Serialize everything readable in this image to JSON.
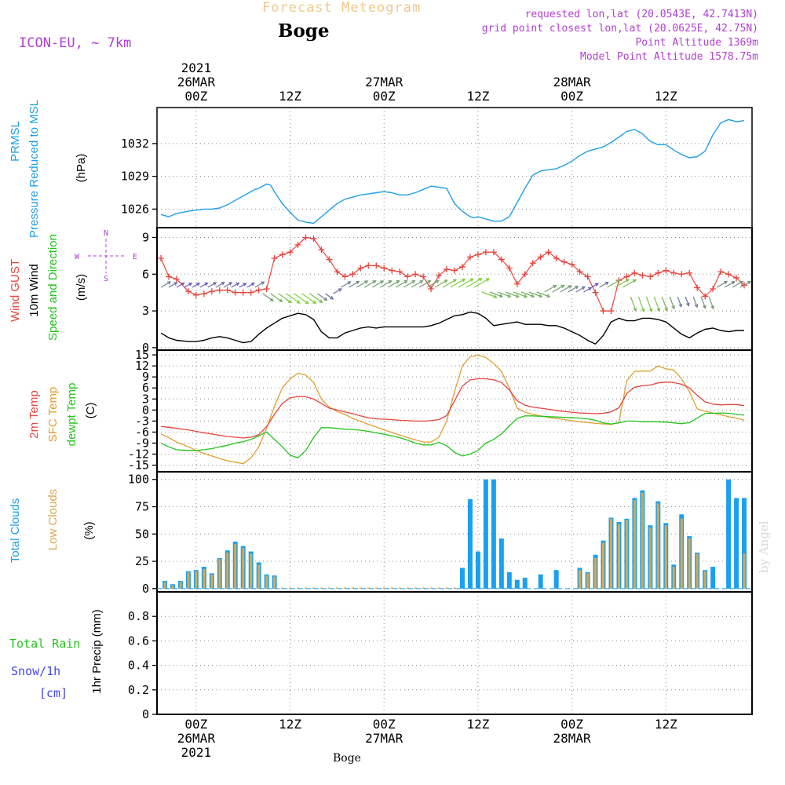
{
  "header": {
    "subtitle": "Forecast Meteogram",
    "location": "Boge",
    "model": "ICON-EU, ~ 7km",
    "requested": "requested lon,lat (20.0543E, 42.7413N)",
    "gridpoint": "grid point closest lon,lat (20.0625E, 42.75N)",
    "point_alt": "Point Altitude 1369m",
    "model_alt": "Model Point Altitude 1578.75m",
    "watermark": "by Angel",
    "footer": "Boge"
  },
  "time_axis": {
    "top_labels": [
      [
        "2021",
        "26MAR",
        "00Z"
      ],
      [
        "12Z"
      ],
      [
        "27MAR",
        "00Z"
      ],
      [
        "12Z"
      ],
      [
        "28MAR",
        "00Z"
      ],
      [
        "12Z"
      ]
    ],
    "bottom_labels": [
      [
        "00Z",
        "26MAR",
        "2021"
      ],
      [
        "12Z"
      ],
      [
        "00Z",
        "27MAR"
      ],
      [
        "12Z"
      ],
      [
        "00Z",
        "28MAR"
      ],
      [
        "12Z"
      ]
    ],
    "tick_hours": [
      0,
      12,
      24,
      36,
      48,
      60
    ],
    "xlim_hours": [
      -5,
      71
    ]
  },
  "colors": {
    "pressure": "#1f9fe6",
    "gust": "#e8443c",
    "wind": "#000000",
    "arrows_low": "#6a3cd8",
    "arrows_high": "#7ad038",
    "temp": "#e8443c",
    "sfc": "#e0a030",
    "dewpt": "#22c41c",
    "total_clouds": "#1aa0f0",
    "low_clouds": "#d8a850",
    "rain": "#22c41c",
    "snow": "#4545e8",
    "vectors": "#b040d0",
    "subtitle": "#f2c98a"
  },
  "chart_data": [
    {
      "type": "line",
      "panel": "pressure",
      "labels": [
        "PRMSL",
        "Pressure Reduced to MSL",
        "(hPa)"
      ],
      "ylim": [
        1024.3,
        1035.3
      ],
      "yticks": [
        1026,
        1029,
        1032
      ],
      "x": [
        -4.5,
        -3.5,
        -2.5,
        -1,
        0,
        1,
        2,
        3,
        4,
        5,
        6,
        7,
        7.5,
        8,
        8.5,
        9,
        9.5,
        10,
        11,
        12,
        13,
        14,
        15,
        16,
        17,
        18,
        19,
        20,
        21,
        22,
        23,
        24,
        25,
        26,
        27,
        28,
        29,
        30,
        31,
        32,
        33,
        34,
        35,
        35.5,
        36,
        37,
        38,
        39,
        40,
        41,
        42,
        43,
        44,
        45,
        46,
        47,
        48,
        49,
        50,
        51,
        52,
        53,
        54,
        55,
        56,
        57,
        58,
        59,
        60,
        61,
        62,
        63,
        64,
        65,
        66,
        67,
        68,
        69,
        70
      ],
      "series": [
        {
          "name": "PRMSL",
          "values": [
            1025.5,
            1025.3,
            1025.6,
            1025.8,
            1025.9,
            1026.0,
            1026.0,
            1026.1,
            1026.4,
            1026.8,
            1027.2,
            1027.6,
            1027.8,
            1027.9,
            1028.1,
            1028.3,
            1028.2,
            1027.6,
            1026.5,
            1025.7,
            1025.0,
            1024.8,
            1024.7,
            1025.3,
            1025.9,
            1026.5,
            1026.9,
            1027.1,
            1027.3,
            1027.4,
            1027.5,
            1027.6,
            1027.5,
            1027.3,
            1027.3,
            1027.5,
            1027.8,
            1028.1,
            1028.0,
            1027.9,
            1026.5,
            1025.8,
            1025.3,
            1025.2,
            1025.3,
            1025.1,
            1024.9,
            1024.9,
            1025.3,
            1026.6,
            1027.9,
            1029.1,
            1029.5,
            1029.6,
            1029.7,
            1030.0,
            1030.4,
            1030.9,
            1031.3,
            1031.5,
            1031.7,
            1032.1,
            1032.6,
            1033.1,
            1033.3,
            1032.9,
            1032.2,
            1031.9,
            1031.9,
            1031.4,
            1031.0,
            1030.7,
            1030.8,
            1031.3,
            1032.8,
            1033.9,
            1034.2,
            1034.0,
            1034.1
          ]
        }
      ]
    },
    {
      "type": "line",
      "panel": "wind",
      "labels": [
        "Wind GUST",
        "10m Wind",
        "Speed and Direction",
        "(m/s)"
      ],
      "compass": {
        "n": "N",
        "s": "S",
        "w": "W",
        "e": "E"
      },
      "ylim": [
        -0.2,
        9.8
      ],
      "yticks": [
        0,
        3,
        6,
        9
      ],
      "x": [
        -4.5,
        -3.5,
        -2.5,
        -1,
        0,
        1,
        2,
        3,
        4,
        5,
        6,
        7,
        8,
        9,
        10,
        11,
        12,
        13,
        14,
        15,
        16,
        17,
        18,
        19,
        20,
        21,
        22,
        23,
        24,
        25,
        26,
        27,
        28,
        29,
        30,
        31,
        32,
        33,
        34,
        35,
        36,
        37,
        38,
        39,
        40,
        41,
        42,
        43,
        44,
        45,
        46,
        47,
        48,
        49,
        50,
        51,
        52,
        53,
        54,
        55,
        56,
        57,
        58,
        59,
        60,
        61,
        62,
        63,
        64,
        65,
        66,
        67,
        68,
        69,
        70
      ],
      "series": [
        {
          "name": "Wind GUST",
          "values": [
            7.3,
            5.8,
            5.6,
            4.6,
            4.3,
            4.4,
            4.6,
            4.7,
            4.7,
            4.5,
            4.5,
            4.5,
            4.7,
            4.8,
            7.3,
            7.6,
            7.8,
            8.4,
            9.0,
            8.9,
            8.0,
            7.2,
            6.2,
            5.8,
            6.0,
            6.5,
            6.7,
            6.7,
            6.5,
            6.3,
            6.2,
            5.8,
            6.0,
            5.8,
            4.8,
            5.9,
            6.4,
            6.3,
            6.6,
            7.4,
            7.6,
            7.8,
            7.8,
            7.2,
            6.5,
            5.2,
            6.0,
            6.9,
            7.4,
            7.8,
            7.3,
            7.0,
            6.8,
            6.2,
            5.8,
            4.5,
            3.0,
            3.0,
            5.5,
            5.8,
            6.1,
            5.9,
            5.8,
            6.1,
            6.3,
            6.1,
            6.0,
            6.1,
            4.9,
            4.2,
            4.8,
            6.2,
            6.0,
            5.7,
            5.1
          ]
        },
        {
          "name": "10m Wind",
          "values": [
            1.2,
            0.8,
            0.6,
            0.5,
            0.5,
            0.6,
            0.8,
            0.9,
            0.8,
            0.6,
            0.4,
            0.5,
            1.1,
            1.6,
            2.0,
            2.4,
            2.6,
            2.8,
            2.7,
            2.3,
            1.3,
            0.8,
            0.8,
            1.2,
            1.4,
            1.6,
            1.7,
            1.6,
            1.7,
            1.7,
            1.7,
            1.7,
            1.7,
            1.7,
            1.8,
            2.0,
            2.3,
            2.6,
            2.7,
            2.9,
            2.8,
            2.4,
            1.8,
            1.9,
            2.0,
            2.1,
            1.9,
            1.9,
            1.9,
            1.8,
            1.8,
            1.6,
            1.3,
            1.0,
            0.6,
            0.3,
            1.0,
            2.1,
            2.4,
            2.2,
            2.2,
            2.4,
            2.4,
            2.3,
            2.1,
            1.6,
            1.1,
            0.8,
            1.2,
            1.5,
            1.6,
            1.4,
            1.3,
            1.4,
            1.4
          ]
        }
      ]
    },
    {
      "type": "line",
      "panel": "temperature",
      "labels": [
        "2m Temp",
        "SFC Temp",
        "dewpt Temp",
        "(C)"
      ],
      "ylim": [
        -16.8,
        16.3
      ],
      "yticks": [
        -15,
        -12,
        -9,
        -6,
        -3,
        0,
        3,
        6,
        9,
        12,
        15
      ],
      "x": [
        -4.5,
        -3.5,
        -2.5,
        -1,
        0,
        1,
        2,
        3,
        4,
        5,
        6,
        7,
        8,
        9,
        10,
        11,
        12,
        13,
        14,
        15,
        16,
        17,
        18,
        19,
        20,
        21,
        22,
        23,
        24,
        25,
        26,
        27,
        28,
        29,
        30,
        31,
        32,
        33,
        34,
        35,
        36,
        37,
        38,
        39,
        40,
        41,
        42,
        43,
        44,
        45,
        46,
        47,
        48,
        49,
        50,
        51,
        52,
        53,
        54,
        55,
        56,
        57,
        58,
        59,
        60,
        61,
        62,
        63,
        64,
        65,
        66,
        67,
        68,
        69,
        70
      ],
      "series": [
        {
          "name": "2m Temp",
          "values": [
            -4.5,
            -4.7,
            -5.0,
            -5.4,
            -5.8,
            -6.2,
            -6.5,
            -6.9,
            -7.2,
            -7.4,
            -7.6,
            -7.4,
            -6.7,
            -4.5,
            -1.2,
            1.8,
            3.3,
            3.7,
            3.6,
            3.0,
            1.8,
            0.5,
            0.0,
            -0.5,
            -1.0,
            -1.6,
            -2.1,
            -2.4,
            -2.5,
            -2.6,
            -2.8,
            -2.9,
            -3.0,
            -3.0,
            -2.9,
            -2.6,
            -1.5,
            2.5,
            6.5,
            8.2,
            8.5,
            8.5,
            8.2,
            7.5,
            5.5,
            2.5,
            1.3,
            0.8,
            0.5,
            0.2,
            -0.1,
            -0.4,
            -0.6,
            -0.8,
            -0.9,
            -1.0,
            -0.9,
            -0.5,
            0.6,
            4.5,
            6.2,
            6.6,
            6.8,
            7.4,
            7.6,
            7.5,
            7.0,
            6.0,
            4.0,
            2.2,
            1.6,
            1.4,
            1.5,
            1.5,
            1.2
          ]
        },
        {
          "name": "SFC Temp",
          "values": [
            -6.5,
            -7.5,
            -8.7,
            -10.0,
            -11.0,
            -11.8,
            -12.5,
            -13.2,
            -13.8,
            -14.2,
            -14.6,
            -13.0,
            -10.0,
            -5.0,
            1.0,
            6.0,
            8.5,
            10.0,
            9.5,
            7.5,
            3.0,
            0.8,
            -0.4,
            -1.2,
            -2.3,
            -3.1,
            -3.9,
            -4.6,
            -5.4,
            -6.1,
            -6.8,
            -7.5,
            -8.1,
            -8.7,
            -8.7,
            -7.4,
            -3.0,
            5.0,
            12.0,
            14.5,
            14.9,
            14.3,
            12.7,
            10.5,
            6.0,
            0.5,
            -0.6,
            -1.2,
            -1.6,
            -2.0,
            -2.3,
            -2.6,
            -2.9,
            -3.2,
            -3.4,
            -3.6,
            -3.8,
            -3.9,
            -3.4,
            8.0,
            10.5,
            10.6,
            10.6,
            12.0,
            11.2,
            10.9,
            8.5,
            5.0,
            0.3,
            -0.3,
            -0.8,
            -1.3,
            -1.8,
            -2.2,
            -2.8
          ]
        },
        {
          "name": "dewpt Temp",
          "values": [
            -9.0,
            -10.0,
            -10.8,
            -11.0,
            -11.0,
            -10.8,
            -10.5,
            -10.0,
            -9.6,
            -9.0,
            -8.6,
            -8.0,
            -7.0,
            -6.0,
            -8.0,
            -10.0,
            -12.3,
            -13.0,
            -11.0,
            -7.5,
            -4.8,
            -4.8,
            -5.0,
            -5.2,
            -5.3,
            -5.5,
            -5.8,
            -6.2,
            -6.6,
            -7.0,
            -7.5,
            -8.2,
            -9.0,
            -9.5,
            -9.5,
            -8.8,
            -9.7,
            -11.5,
            -12.5,
            -12.0,
            -11.0,
            -9.0,
            -8.0,
            -6.5,
            -4.3,
            -2.3,
            -1.6,
            -1.6,
            -1.7,
            -1.8,
            -1.9,
            -2.0,
            -2.1,
            -2.2,
            -2.4,
            -2.8,
            -3.5,
            -3.8,
            -3.5,
            -3.0,
            -3.0,
            -3.2,
            -3.2,
            -3.2,
            -3.3,
            -3.5,
            -3.7,
            -3.4,
            -2.2,
            -0.9,
            -0.9,
            -0.8,
            -0.9,
            -1.1,
            -1.4
          ]
        }
      ]
    },
    {
      "type": "bar",
      "panel": "clouds",
      "labels": [
        "Total Clouds",
        "Low Clouds",
        "(%)"
      ],
      "ylim": [
        -3,
        107
      ],
      "yticks": [
        0,
        25,
        50,
        75,
        100
      ],
      "x": [
        -4,
        -3,
        -2,
        -1,
        0,
        1,
        2,
        3,
        4,
        5,
        6,
        7,
        8,
        9,
        10,
        11,
        12,
        13,
        14,
        15,
        16,
        17,
        18,
        19,
        20,
        21,
        22,
        23,
        24,
        25,
        26,
        27,
        28,
        29,
        30,
        31,
        32,
        33,
        34,
        35,
        36,
        37,
        38,
        39,
        40,
        41,
        42,
        43,
        44,
        45,
        46,
        47,
        48,
        49,
        50,
        51,
        52,
        53,
        54,
        55,
        56,
        57,
        58,
        59,
        60,
        61,
        62,
        63,
        64,
        65,
        66,
        67,
        68,
        69,
        70
      ],
      "series": [
        {
          "name": "Total Clouds",
          "values": [
            7,
            4,
            7,
            16,
            17,
            20,
            14,
            28,
            35,
            43,
            39,
            34,
            24,
            13,
            12,
            0,
            0,
            0,
            0,
            0,
            0,
            0,
            0,
            0,
            0,
            0,
            0,
            0,
            0,
            0,
            0,
            0,
            0,
            0,
            0,
            0,
            0,
            0,
            19,
            82,
            34,
            100,
            100,
            46,
            15,
            8,
            10,
            0,
            13,
            0,
            17,
            0,
            0,
            19,
            15,
            31,
            44,
            65,
            61,
            64,
            83,
            90,
            58,
            80,
            60,
            22,
            68,
            48,
            33,
            17,
            20,
            0,
            100,
            83,
            83
          ]
        },
        {
          "name": "Low Clouds",
          "values": [
            6,
            3,
            6,
            15,
            16,
            18,
            13,
            27,
            33,
            41,
            37,
            32,
            22,
            12,
            11,
            1,
            1,
            1,
            1,
            1,
            1,
            1,
            1,
            1,
            1,
            1,
            1,
            1,
            1,
            1,
            1,
            1,
            1,
            1,
            1,
            1,
            1,
            1,
            0,
            0,
            0,
            0,
            0,
            0,
            0,
            0,
            0,
            0,
            0,
            0,
            0,
            0,
            0,
            17,
            14,
            28,
            42,
            64,
            59,
            63,
            81,
            88,
            56,
            78,
            58,
            20,
            64,
            46,
            32,
            16,
            0,
            0,
            0,
            0,
            32
          ]
        }
      ]
    },
    {
      "type": "bar",
      "panel": "precip",
      "labels": [
        "Total  Rain",
        "Snow/1h",
        "[cm]",
        "1hr Precip (mm)"
      ],
      "ylim": [
        0,
        1.0
      ],
      "yticks": [
        0,
        0.2,
        0.4,
        0.6,
        0.8
      ],
      "ytick_labels": [
        "0",
        "0.2",
        "0.4",
        "0.6",
        "0.8"
      ],
      "x": [],
      "series": []
    }
  ]
}
